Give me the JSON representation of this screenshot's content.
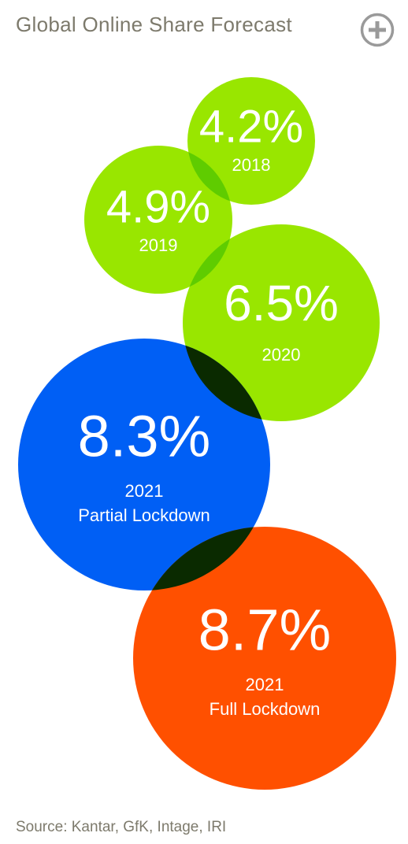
{
  "header": {
    "title": "Global Online Share Forecast",
    "expand_icon": "plus-circle-icon"
  },
  "footer": {
    "source": "Source: Kantar, GfK, Intage, IRI"
  },
  "chart_data": {
    "type": "bubble",
    "title": "Global Online Share Forecast",
    "unit": "%",
    "bubbles": [
      {
        "value": 4.2,
        "value_label": "4.2%",
        "labels": [
          "2018"
        ],
        "color": "#99e600"
      },
      {
        "value": 4.9,
        "value_label": "4.9%",
        "labels": [
          "2019"
        ],
        "color": "#99e600"
      },
      {
        "value": 6.5,
        "value_label": "6.5%",
        "labels": [
          "2020"
        ],
        "color": "#99e600"
      },
      {
        "value": 8.3,
        "value_label": "8.3%",
        "labels": [
          "2021",
          "Partial Lockdown"
        ],
        "color": "#005ff5"
      },
      {
        "value": 8.7,
        "value_label": "8.7%",
        "labels": [
          "2021",
          "Full Lockdown"
        ],
        "color": "#ff5000"
      }
    ],
    "overlap_color": "#0a2a00"
  }
}
